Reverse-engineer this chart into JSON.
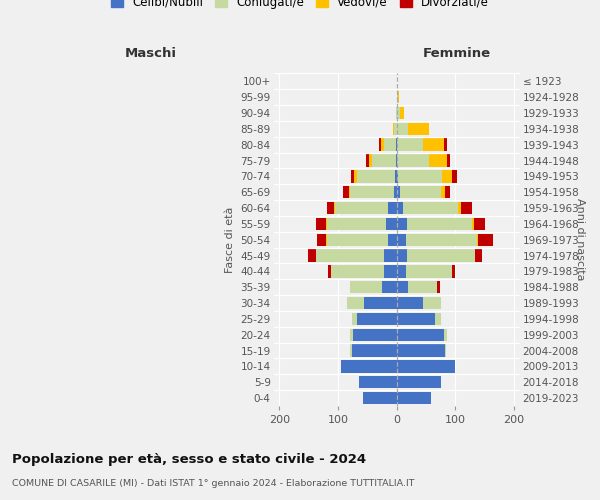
{
  "age_groups": [
    "0-4",
    "5-9",
    "10-14",
    "15-19",
    "20-24",
    "25-29",
    "30-34",
    "35-39",
    "40-44",
    "45-49",
    "50-54",
    "55-59",
    "60-64",
    "65-69",
    "70-74",
    "75-79",
    "80-84",
    "85-89",
    "90-94",
    "95-99",
    "100+"
  ],
  "birth_years": [
    "2019-2023",
    "2014-2018",
    "2009-2013",
    "2004-2008",
    "1999-2003",
    "1994-1998",
    "1989-1993",
    "1984-1988",
    "1979-1983",
    "1974-1978",
    "1969-1973",
    "1964-1968",
    "1959-1963",
    "1954-1958",
    "1949-1953",
    "1944-1948",
    "1939-1943",
    "1934-1938",
    "1929-1933",
    "1924-1928",
    "≤ 1923"
  ],
  "colors": {
    "celibe": "#4472c4",
    "coniugato": "#c5d9a0",
    "vedovo": "#ffc000",
    "divorziato": "#c00000"
  },
  "maschi": {
    "celibe": [
      58,
      65,
      95,
      77,
      75,
      68,
      55,
      25,
      22,
      22,
      14,
      18,
      15,
      4,
      3,
      2,
      2,
      0,
      0,
      0,
      0
    ],
    "coniugato": [
      0,
      0,
      0,
      3,
      5,
      8,
      30,
      55,
      90,
      115,
      105,
      100,
      90,
      75,
      65,
      40,
      20,
      5,
      2,
      0,
      0
    ],
    "vedovo": [
      0,
      0,
      0,
      0,
      0,
      0,
      0,
      0,
      0,
      0,
      2,
      2,
      2,
      3,
      5,
      5,
      5,
      2,
      0,
      0,
      0
    ],
    "divorziato": [
      0,
      0,
      0,
      0,
      0,
      0,
      0,
      0,
      5,
      15,
      15,
      18,
      12,
      10,
      5,
      5,
      3,
      0,
      0,
      0,
      0
    ]
  },
  "femmine": {
    "nubile": [
      58,
      75,
      100,
      82,
      80,
      65,
      45,
      20,
      15,
      18,
      16,
      18,
      10,
      5,
      2,
      0,
      0,
      0,
      0,
      0,
      0
    ],
    "coniugata": [
      0,
      0,
      0,
      2,
      5,
      10,
      30,
      48,
      80,
      115,
      120,
      110,
      95,
      70,
      75,
      55,
      45,
      20,
      5,
      2,
      0
    ],
    "vedova": [
      0,
      0,
      0,
      0,
      0,
      0,
      0,
      0,
      0,
      0,
      2,
      3,
      5,
      8,
      18,
      30,
      35,
      35,
      8,
      2,
      0
    ],
    "divorziata": [
      0,
      0,
      0,
      0,
      0,
      0,
      0,
      5,
      5,
      12,
      26,
      20,
      18,
      8,
      8,
      5,
      5,
      0,
      0,
      0,
      0
    ]
  },
  "title": "Popolazione per età, sesso e stato civile - 2024",
  "subtitle": "COMUNE DI CASARILE (MI) - Dati ISTAT 1° gennaio 2024 - Elaborazione TUTTITALIA.IT",
  "xlabel_left": "Maschi",
  "xlabel_right": "Femmine",
  "ylabel_left": "Fasce di età",
  "ylabel_right": "Anni di nascita",
  "xlim": 210,
  "xticks": [
    -200,
    -100,
    0,
    100,
    200
  ],
  "xtick_labels": [
    "200",
    "100",
    "0",
    "100",
    "200"
  ],
  "legend_labels": [
    "Celibi/Nubili",
    "Coniugati/e",
    "Vedovi/e",
    "Divorziati/e"
  ],
  "bg_color": "#f0f0f0",
  "bar_height": 0.78
}
